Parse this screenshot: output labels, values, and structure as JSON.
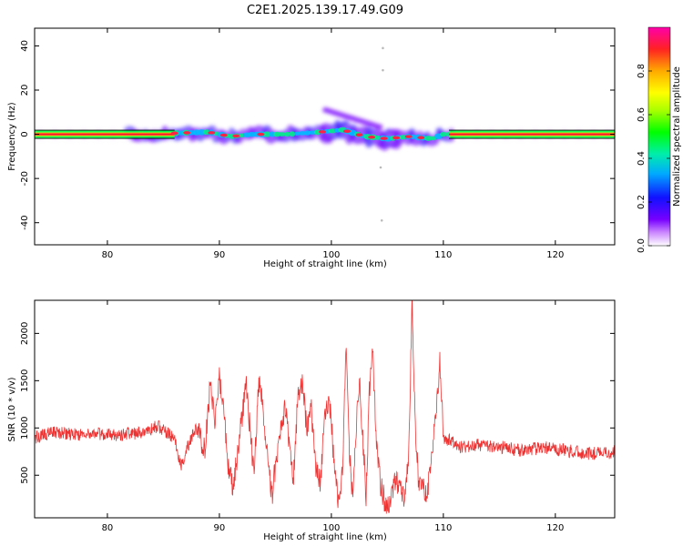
{
  "title": "C2E1.2025.139.17.49.G09",
  "chart_data": [
    {
      "type": "heatmap",
      "xlabel": "Height of straight line (km)",
      "ylabel": "Frequency (Hz)",
      "xlim": [
        73.5,
        125.3
      ],
      "ylim": [
        -50,
        48
      ],
      "xticks": [
        80,
        90,
        100,
        110,
        120
      ],
      "yticks": [
        -40,
        -20,
        0,
        20,
        40
      ],
      "colorbar": {
        "label": "Normalized spectral amplitude",
        "range": [
          0,
          1
        ],
        "ticks": [
          0.0,
          0.2,
          0.4,
          0.6,
          0.8
        ],
        "tick_labels": [
          "0.0",
          "0.2",
          "0.4",
          "0.6",
          "0.8"
        ]
      },
      "ridge": [
        {
          "x": 73.5,
          "y": 0
        },
        {
          "x": 83,
          "y": 0
        },
        {
          "x": 86,
          "y": 0.5
        },
        {
          "x": 89,
          "y": 1
        },
        {
          "x": 91,
          "y": -1
        },
        {
          "x": 93,
          "y": 0
        },
        {
          "x": 96,
          "y": 0
        },
        {
          "x": 99,
          "y": 1
        },
        {
          "x": 101,
          "y": 2
        },
        {
          "x": 103,
          "y": -1
        },
        {
          "x": 105,
          "y": -2
        },
        {
          "x": 107,
          "y": -1
        },
        {
          "x": 109,
          "y": -2
        },
        {
          "x": 110,
          "y": 0
        },
        {
          "x": 125.3,
          "y": 0
        }
      ]
    },
    {
      "type": "line",
      "xlabel": "Height of straight line (km)",
      "ylabel": "SNR (10 * v/v)",
      "xlim": [
        73.5,
        125.3
      ],
      "ylim": [
        50,
        2350
      ],
      "xticks": [
        80,
        90,
        100,
        110,
        120
      ],
      "yticks": [
        500,
        1000,
        1500,
        2000
      ],
      "color": "#ee3333",
      "series": [
        {
          "points": [
            [
              73.5,
              900
            ],
            [
              75,
              950
            ],
            [
              77,
              930
            ],
            [
              79,
              940
            ],
            [
              81,
              930
            ],
            [
              83,
              950
            ],
            [
              84.5,
              1020
            ],
            [
              86,
              880
            ],
            [
              86.6,
              580
            ],
            [
              87.2,
              820
            ],
            [
              88,
              1000
            ],
            [
              88.7,
              760
            ],
            [
              89.2,
              1480
            ],
            [
              89.6,
              1100
            ],
            [
              90,
              1520
            ],
            [
              90.4,
              1150
            ],
            [
              90.8,
              560
            ],
            [
              91.2,
              400
            ],
            [
              91.6,
              700
            ],
            [
              92,
              1100
            ],
            [
              92.4,
              1470
            ],
            [
              92.8,
              900
            ],
            [
              93.1,
              500
            ],
            [
              93.5,
              1500
            ],
            [
              93.9,
              1200
            ],
            [
              94.3,
              650
            ],
            [
              94.7,
              280
            ],
            [
              95.1,
              700
            ],
            [
              95.5,
              1000
            ],
            [
              95.9,
              1260
            ],
            [
              96.3,
              700
            ],
            [
              96.6,
              400
            ],
            [
              97,
              1300
            ],
            [
              97.4,
              1500
            ],
            [
              97.8,
              1000
            ],
            [
              98.2,
              1200
            ],
            [
              98.6,
              600
            ],
            [
              99,
              400
            ],
            [
              99.4,
              1100
            ],
            [
              99.8,
              1350
            ],
            [
              100.2,
              700
            ],
            [
              100.6,
              250
            ],
            [
              101,
              500
            ],
            [
              101.3,
              1850
            ],
            [
              101.6,
              800
            ],
            [
              101.9,
              250
            ],
            [
              102.2,
              1000
            ],
            [
              102.5,
              1500
            ],
            [
              102.8,
              900
            ],
            [
              103.1,
              300
            ],
            [
              103.4,
              1400
            ],
            [
              103.7,
              1800
            ],
            [
              104,
              900
            ],
            [
              104.4,
              400
            ],
            [
              104.8,
              200
            ],
            [
              105.2,
              180
            ],
            [
              105.7,
              420
            ],
            [
              106.1,
              400
            ],
            [
              106.5,
              280
            ],
            [
              106.9,
              700
            ],
            [
              107.2,
              2330
            ],
            [
              107.5,
              1000
            ],
            [
              107.8,
              400
            ],
            [
              108.2,
              350
            ],
            [
              108.6,
              330
            ],
            [
              109,
              700
            ],
            [
              109.4,
              1230
            ],
            [
              109.7,
              1700
            ],
            [
              110,
              900
            ],
            [
              110.3,
              850
            ],
            [
              110.7,
              880
            ],
            [
              111.5,
              800
            ],
            [
              113,
              820
            ],
            [
              115,
              800
            ],
            [
              117,
              760
            ],
            [
              119,
              790
            ],
            [
              121,
              760
            ],
            [
              123,
              730
            ],
            [
              125.3,
              740
            ]
          ]
        }
      ]
    }
  ]
}
